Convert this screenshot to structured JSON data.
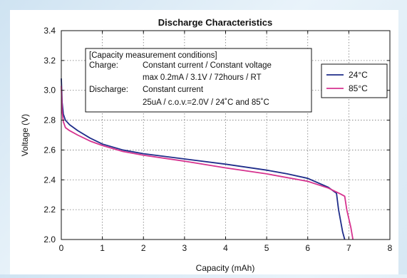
{
  "chart_data": {
    "type": "line",
    "title": "Discharge Characteristics",
    "xlabel": "Capacity (mAh)",
    "ylabel": "Voltage (V)",
    "xlim": [
      0,
      8
    ],
    "ylim": [
      2.0,
      3.4
    ],
    "x_ticks": [
      "0",
      "1",
      "2",
      "3",
      "4",
      "5",
      "6",
      "7",
      "8"
    ],
    "y_ticks": [
      "2.0",
      "2.2",
      "2.4",
      "2.6",
      "2.8",
      "3.0",
      "3.2",
      "3.4"
    ],
    "grid": true,
    "legend_position": "right",
    "series": [
      {
        "name": "24°C",
        "color": "#1f2d8a",
        "points": [
          [
            0,
            3.08
          ],
          [
            0.02,
            2.92
          ],
          [
            0.05,
            2.84
          ],
          [
            0.1,
            2.8
          ],
          [
            0.2,
            2.77
          ],
          [
            0.4,
            2.73
          ],
          [
            0.7,
            2.68
          ],
          [
            1,
            2.64
          ],
          [
            1.5,
            2.6
          ],
          [
            2,
            2.575
          ],
          [
            3,
            2.54
          ],
          [
            4,
            2.505
          ],
          [
            5,
            2.465
          ],
          [
            5.5,
            2.44
          ],
          [
            6,
            2.41
          ],
          [
            6.5,
            2.35
          ],
          [
            6.7,
            2.31
          ],
          [
            6.75,
            2.2
          ],
          [
            6.85,
            2.05
          ],
          [
            6.9,
            2.0
          ]
        ]
      },
      {
        "name": "85°C",
        "color": "#d6338f",
        "points": [
          [
            0,
            3.03
          ],
          [
            0.02,
            2.86
          ],
          [
            0.05,
            2.79
          ],
          [
            0.1,
            2.75
          ],
          [
            0.2,
            2.73
          ],
          [
            0.4,
            2.7
          ],
          [
            0.7,
            2.66
          ],
          [
            1,
            2.63
          ],
          [
            1.5,
            2.59
          ],
          [
            2,
            2.565
          ],
          [
            3,
            2.525
          ],
          [
            4,
            2.48
          ],
          [
            5,
            2.44
          ],
          [
            6,
            2.39
          ],
          [
            6.5,
            2.345
          ],
          [
            6.8,
            2.305
          ],
          [
            6.9,
            2.29
          ],
          [
            6.95,
            2.2
          ],
          [
            7.05,
            2.08
          ],
          [
            7.1,
            2.0
          ]
        ]
      }
    ],
    "annotation": {
      "title": "[Capacity measurement conditions]",
      "charge_label": "Charge:",
      "charge_line1": "Constant current / Constant voltage",
      "charge_line2": "max 0.2mA / 3.1V / 72hours / RT",
      "discharge_label": "Discharge:",
      "discharge_line1": "Constant current",
      "discharge_line2": "25uA / c.o.v.=2.0V / 24˚C and 85˚C"
    }
  }
}
